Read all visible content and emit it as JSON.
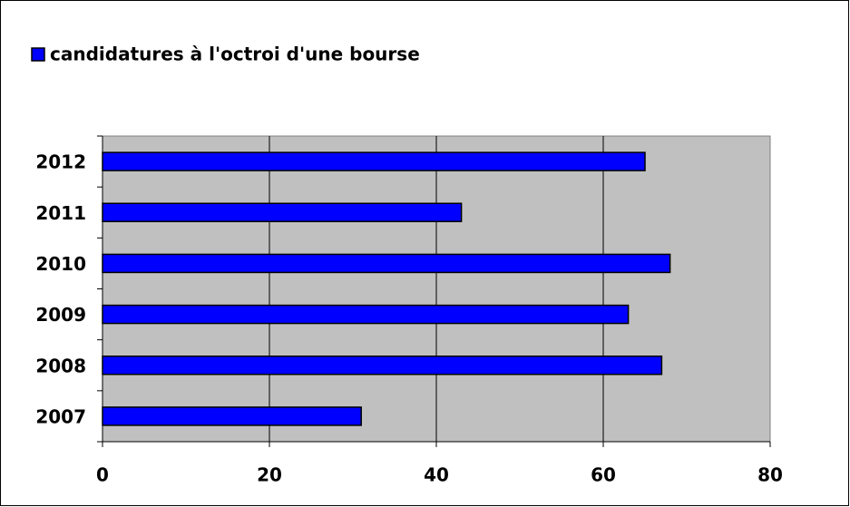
{
  "chart_data": {
    "type": "bar",
    "orientation": "horizontal",
    "categories": [
      "2007",
      "2008",
      "2009",
      "2010",
      "2011",
      "2012"
    ],
    "series": [
      {
        "name": "candidatures à l'octroi d'une bourse",
        "color": "#0000ff",
        "values": [
          31,
          67,
          63,
          68,
          43,
          65
        ]
      }
    ],
    "xlim": [
      0,
      80
    ],
    "xticks": [
      0,
      20,
      40,
      60,
      80
    ],
    "grid": true,
    "legend": "top-left"
  }
}
